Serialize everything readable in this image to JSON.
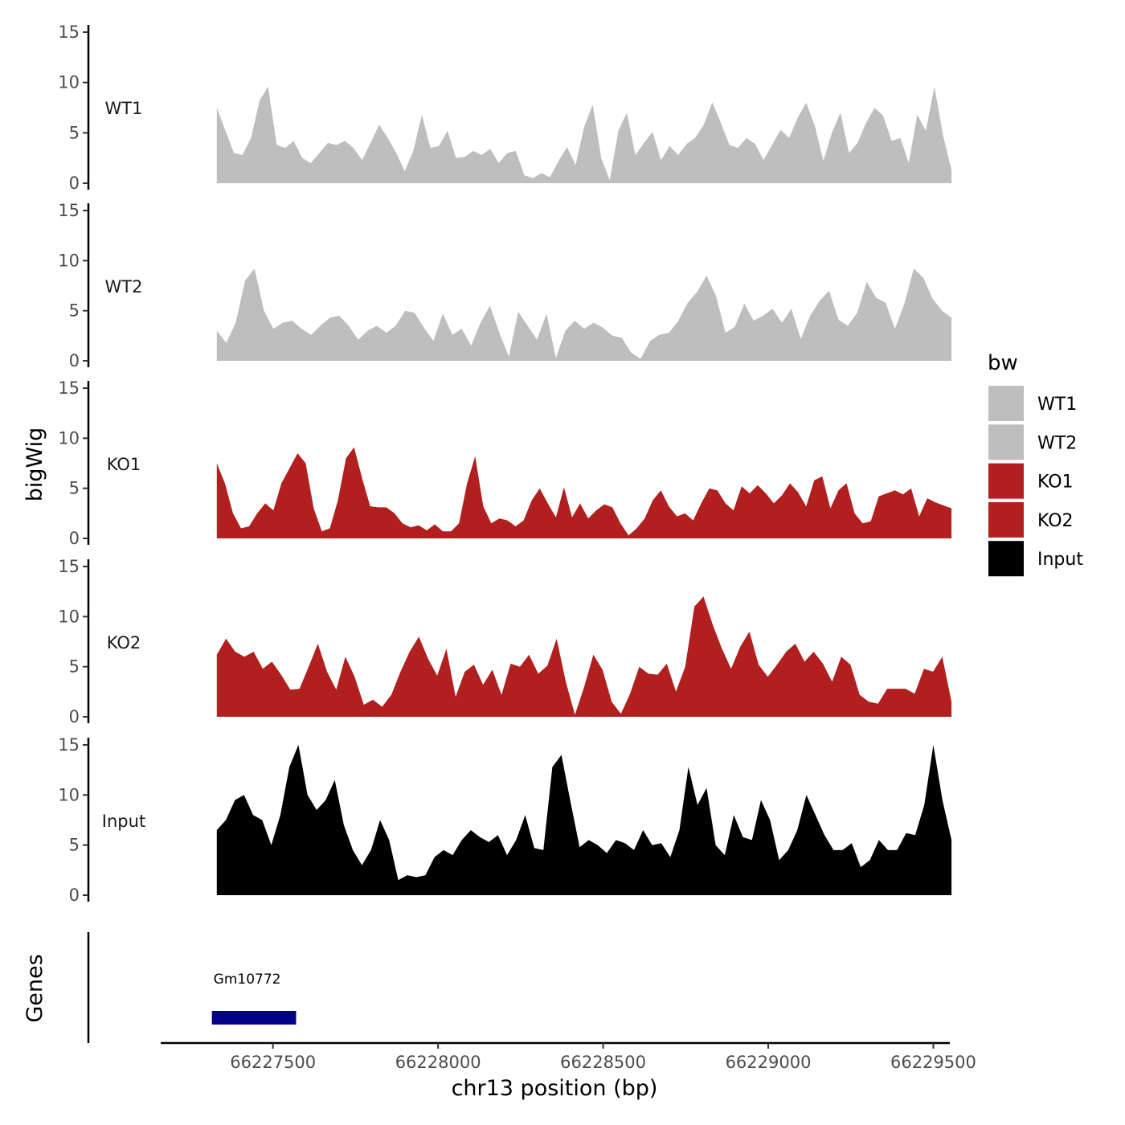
{
  "chart_data": {
    "type": "area",
    "title": "",
    "xlabel": "chr13 position (bp)",
    "ylabel_tracks": "bigWig",
    "ylabel_genes": "Genes",
    "xlim": [
      66227160,
      66229550
    ],
    "x_ticks": [
      66227500,
      66228000,
      66228500,
      66229000,
      66229500
    ],
    "x_tick_labels": [
      "66227500",
      "66228000",
      "66228500",
      "66229000",
      "66229500"
    ],
    "ylim": [
      0,
      15
    ],
    "y_ticks": [
      0,
      5,
      10,
      15
    ],
    "y_tick_labels": [
      "0",
      "5",
      "10",
      "15"
    ],
    "x_start": 66227330,
    "x_end": 66229555,
    "legend": {
      "title": "bw",
      "position": "right",
      "entries": [
        {
          "label": "WT1",
          "color": "#bebebe"
        },
        {
          "label": "WT2",
          "color": "#bebebe"
        },
        {
          "label": "KO1",
          "color": "#b21f1f"
        },
        {
          "label": "KO2",
          "color": "#b21f1f"
        },
        {
          "label": "Input",
          "color": "#000000"
        }
      ]
    },
    "series": [
      {
        "name": "WT1",
        "color": "#bebebe",
        "values": [
          7.5,
          5.2,
          3,
          2.8,
          4.5,
          8.2,
          9.6,
          3.8,
          3.5,
          4.2,
          2.5,
          2,
          3,
          4,
          3.8,
          4.2,
          3.5,
          2.3,
          4,
          5.8,
          4.5,
          3,
          1.2,
          3.2,
          6.8,
          3.5,
          3.7,
          5.2,
          2.5,
          2.6,
          3.2,
          2.8,
          3.4,
          2,
          3,
          3.2,
          0.8,
          0.5,
          1,
          0.6,
          2.2,
          3.6,
          1.8,
          5.6,
          7.8,
          2.5,
          0.3,
          5.2,
          7,
          2.8,
          4,
          5.1,
          2.3,
          3.7,
          2.8,
          3.9,
          4.5,
          5.8,
          8,
          6,
          3.8,
          3.5,
          4.5,
          3.9,
          2.3,
          3.8,
          5.3,
          4.5,
          6.5,
          8,
          5.7,
          2.2,
          5,
          7,
          3,
          4,
          6,
          7.5,
          6.7,
          4.2,
          4.5,
          2,
          6.8,
          5.2,
          9.6,
          4.8,
          1.3
        ]
      },
      {
        "name": "WT2",
        "color": "#bebebe",
        "values": [
          3,
          1.8,
          3.8,
          8,
          9.2,
          5,
          3.2,
          3.8,
          4,
          3.2,
          2.6,
          3.5,
          4.3,
          4.5,
          3.5,
          2.1,
          3,
          3.5,
          2.8,
          3.5,
          5,
          4.8,
          3.3,
          2,
          4.7,
          2.6,
          3.2,
          1.5,
          3.8,
          5.5,
          2.8,
          0.4,
          4.9,
          3.5,
          2.1,
          4.7,
          0.3,
          3,
          4,
          3.2,
          3.8,
          3.3,
          2.5,
          2.3,
          0.8,
          0.2,
          2,
          2.6,
          2.8,
          4,
          5.8,
          6.9,
          8.5,
          6.5,
          2.8,
          3.4,
          5.7,
          4,
          4.5,
          5.2,
          3.8,
          5.2,
          2.2,
          4.5,
          6,
          7,
          4.1,
          3.5,
          4.8,
          7.9,
          6.3,
          5.8,
          3.2,
          5.7,
          9.2,
          8.3,
          6.2,
          5,
          4.3
        ]
      },
      {
        "name": "KO1",
        "color": "#b21f1f",
        "values": [
          7.5,
          5.5,
          2.5,
          1,
          1.2,
          2.5,
          3.5,
          2.8,
          5.5,
          7,
          8.5,
          7.5,
          3,
          0.7,
          1,
          3.8,
          8,
          9.1,
          6,
          3.2,
          3.1,
          3.1,
          2.5,
          1.5,
          1.1,
          1.3,
          0.8,
          1.4,
          0.7,
          0.7,
          1.5,
          5.5,
          8.2,
          3.2,
          1.5,
          2,
          1.8,
          1.2,
          1.8,
          3.8,
          5,
          3.5,
          2.1,
          5.1,
          2.1,
          3.5,
          2,
          2.8,
          3.4,
          3.1,
          1.5,
          0.3,
          1,
          2,
          3.8,
          4.8,
          3.2,
          2.2,
          2.5,
          1.8,
          3.5,
          5,
          4.8,
          3.5,
          2.8,
          5.2,
          4.5,
          5.3,
          4.5,
          3.5,
          4.3,
          5.5,
          4.6,
          3.2,
          5.8,
          6.2,
          3,
          4.8,
          5.5,
          2.5,
          1.5,
          1.7,
          4.2,
          4.5,
          4.8,
          4.4,
          5,
          2.2,
          4,
          3.6,
          3.3,
          3
        ]
      },
      {
        "name": "KO2",
        "color": "#b21f1f",
        "values": [
          6.2,
          7.8,
          6.5,
          6,
          6.5,
          4.8,
          5.5,
          4.2,
          2.7,
          2.8,
          5,
          7.3,
          4.5,
          2.7,
          6,
          4,
          1.2,
          1.7,
          1,
          2.2,
          4.5,
          6.5,
          8,
          5.8,
          4.1,
          6.8,
          2,
          4.5,
          5.2,
          3.2,
          4.7,
          2.2,
          5.3,
          5,
          6.2,
          4.3,
          5.1,
          7.8,
          3.5,
          0.2,
          3,
          6.2,
          4.7,
          1.5,
          0.3,
          2.3,
          5,
          4.3,
          4.2,
          5.3,
          2.5,
          5,
          11,
          12,
          9.2,
          6.8,
          4.8,
          7,
          8.5,
          5.2,
          4,
          5.2,
          6.5,
          7.3,
          5.5,
          6.5,
          5.3,
          3.5,
          6,
          5.2,
          2.2,
          1.5,
          1.3,
          2.8,
          2.8,
          2.8,
          2.3,
          4.8,
          4.5,
          6,
          1.5
        ]
      },
      {
        "name": "Input",
        "color": "#000000",
        "values": [
          6.5,
          7.5,
          9.5,
          10,
          8,
          7.5,
          5,
          8,
          12.8,
          15,
          10,
          8.5,
          9.5,
          11.5,
          7,
          4.5,
          3,
          4.5,
          7.5,
          5.5,
          1.5,
          2,
          1.8,
          2,
          3.8,
          4.5,
          4,
          5.5,
          6.5,
          5.8,
          5.3,
          6,
          4,
          5.5,
          8,
          4.7,
          4.5,
          12.8,
          14,
          9.3,
          4.8,
          5.5,
          5,
          4.2,
          5.5,
          5.2,
          4.5,
          6.5,
          5,
          5.2,
          3.8,
          6.5,
          12.8,
          9,
          10.7,
          5,
          4,
          8,
          5.8,
          5.5,
          9.5,
          7.5,
          3.5,
          4.5,
          6.5,
          10,
          8,
          6,
          4.5,
          4.5,
          5.2,
          2.8,
          3.5,
          5.5,
          4.5,
          4.5,
          6.2,
          6,
          9,
          15,
          9.5,
          5.5
        ]
      }
    ],
    "genes": [
      {
        "name": "Gm10772",
        "start": 66227315,
        "end": 66227570,
        "color": "#00008b"
      }
    ]
  }
}
